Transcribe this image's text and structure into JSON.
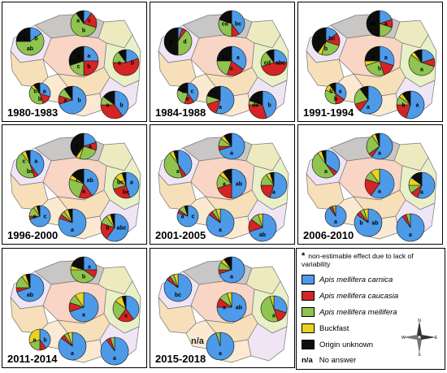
{
  "colors": {
    "carnica": "#4d9be8",
    "caucasia": "#d42424",
    "mellifera": "#8fc450",
    "buckfast": "#e6d422",
    "unknown": "#0d0d0d",
    "province_fills": [
      "#f8d5c4",
      "#f7e0b9",
      "#fbe9d2",
      "#e9f0c8",
      "#f0e5f5",
      "#c9c6c6",
      "#eeeac0"
    ]
  },
  "panels": [
    {
      "label": "1980-1983",
      "na_text": "",
      "pies": [
        {
          "region": "north",
          "values": [
            10,
            20,
            60,
            0,
            10
          ],
          "letters": [
            "c",
            "b",
            "a"
          ]
        },
        {
          "region": "west",
          "values": [
            15,
            0,
            60,
            0,
            25
          ],
          "letters": [
            "b",
            "ab",
            "a"
          ]
        },
        {
          "region": "center",
          "values": [
            25,
            25,
            20,
            0,
            30
          ],
          "letters": [
            "a",
            "b",
            "c",
            "a"
          ]
        },
        {
          "region": "east",
          "values": [
            20,
            55,
            15,
            0,
            10
          ],
          "letters": [
            "b",
            "a"
          ]
        },
        {
          "region": "southwest",
          "values": [
            30,
            15,
            40,
            5,
            10
          ],
          "letters": [
            "a",
            "b",
            "c"
          ]
        },
        {
          "region": "south",
          "values": [
            70,
            10,
            10,
            0,
            10
          ],
          "letters": [
            "b",
            "a"
          ]
        },
        {
          "region": "southeast",
          "values": [
            40,
            35,
            10,
            0,
            15
          ],
          "letters": [
            "b",
            "a"
          ]
        }
      ]
    },
    {
      "label": "1984-1988",
      "na_text": "",
      "pies": [
        {
          "region": "north",
          "values": [
            40,
            10,
            30,
            0,
            20
          ],
          "letters": [
            "bc",
            "cd"
          ]
        },
        {
          "region": "west",
          "values": [
            5,
            5,
            40,
            0,
            50
          ],
          "letters": [
            "d",
            "a"
          ]
        },
        {
          "region": "center",
          "values": [
            35,
            20,
            20,
            0,
            25
          ],
          "letters": [
            "a",
            "c",
            "bc"
          ]
        },
        {
          "region": "east",
          "values": [
            25,
            45,
            20,
            0,
            10
          ],
          "letters": [
            "abc",
            "cd"
          ]
        },
        {
          "region": "southwest",
          "values": [
            40,
            15,
            25,
            0,
            20
          ],
          "letters": [
            "c",
            "e",
            "d"
          ]
        },
        {
          "region": "south",
          "values": [
            55,
            15,
            10,
            0,
            20
          ],
          "letters": [
            "a"
          ]
        },
        {
          "region": "southeast",
          "values": [
            45,
            30,
            5,
            0,
            20
          ],
          "letters": [
            "b",
            "de"
          ]
        }
      ]
    },
    {
      "label": "1991-1994",
      "na_text": "",
      "pies": [
        {
          "region": "north",
          "values": [
            20,
            10,
            20,
            0,
            50
          ],
          "letters": [
            "a",
            "ab"
          ]
        },
        {
          "region": "west",
          "values": [
            15,
            15,
            25,
            5,
            40
          ],
          "letters": [
            "bc",
            "b",
            "b"
          ]
        },
        {
          "region": "center",
          "values": [
            30,
            15,
            25,
            5,
            25
          ],
          "letters": [
            "a",
            "b",
            "a"
          ]
        },
        {
          "region": "east",
          "values": [
            20,
            10,
            55,
            5,
            10
          ],
          "letters": [
            "a"
          ]
        },
        {
          "region": "southwest",
          "values": [
            35,
            15,
            30,
            10,
            10
          ],
          "letters": [
            "a",
            "b",
            "b"
          ]
        },
        {
          "region": "south",
          "values": [
            60,
            10,
            20,
            0,
            10
          ],
          "letters": [
            "a"
          ]
        },
        {
          "region": "southeast",
          "values": [
            55,
            20,
            10,
            5,
            10
          ],
          "letters": [
            "a",
            "b"
          ]
        }
      ]
    },
    {
      "label": "1996-2000",
      "na_text": "",
      "pies": [
        {
          "region": "north",
          "values": [
            20,
            10,
            25,
            5,
            40
          ],
          "letters": [
            "a",
            "c"
          ]
        },
        {
          "region": "west",
          "values": [
            40,
            5,
            45,
            5,
            5
          ],
          "letters": [
            "a",
            "bc",
            "c"
          ]
        },
        {
          "region": "center",
          "values": [
            40,
            15,
            25,
            5,
            15
          ],
          "letters": [
            "ab",
            "a",
            "c"
          ]
        },
        {
          "region": "east",
          "values": [
            45,
            25,
            15,
            10,
            5
          ],
          "letters": [
            "a",
            "bc",
            "bc"
          ]
        },
        {
          "region": "southwest",
          "values": [
            70,
            5,
            15,
            5,
            5
          ],
          "letters": [
            "c",
            "a"
          ]
        },
        {
          "region": "south",
          "values": [
            80,
            5,
            5,
            5,
            5
          ],
          "letters": [
            "a"
          ]
        },
        {
          "region": "southeast",
          "values": [
            60,
            20,
            10,
            5,
            5
          ],
          "letters": [
            "abc",
            "b"
          ]
        }
      ]
    },
    {
      "label": "2001-2005",
      "na_text": "",
      "pies": [
        {
          "region": "north",
          "values": [
            70,
            5,
            10,
            5,
            10
          ],
          "letters": [
            "a"
          ]
        },
        {
          "region": "west",
          "values": [
            40,
            5,
            45,
            5,
            5
          ],
          "letters": [
            "a"
          ]
        },
        {
          "region": "center",
          "values": [
            50,
            20,
            15,
            5,
            10
          ],
          "letters": [
            "ab",
            "a"
          ]
        },
        {
          "region": "east",
          "values": [
            55,
            20,
            15,
            5,
            5
          ],
          "letters": [
            "a"
          ]
        },
        {
          "region": "southwest",
          "values": [
            80,
            5,
            10,
            0,
            5
          ],
          "letters": [
            "c",
            "a"
          ]
        },
        {
          "region": "south",
          "values": [
            85,
            5,
            5,
            5,
            0
          ],
          "letters": [
            "a"
          ]
        },
        {
          "region": "southeast",
          "values": [
            70,
            15,
            10,
            5,
            0
          ],
          "letters": [
            "ab"
          ]
        }
      ]
    },
    {
      "label": "2006-2010",
      "na_text": "",
      "pies": [
        {
          "region": "north",
          "values": [
            60,
            5,
            25,
            5,
            5
          ],
          "letters": [
            "a"
          ]
        },
        {
          "region": "west",
          "values": [
            35,
            5,
            50,
            5,
            5
          ],
          "letters": [
            "a"
          ]
        },
        {
          "region": "center",
          "values": [
            60,
            20,
            10,
            10,
            0
          ],
          "letters": [
            "a"
          ]
        },
        {
          "region": "east",
          "values": [
            55,
            10,
            10,
            10,
            15
          ],
          "letters": [
            "a"
          ]
        },
        {
          "region": "southwest",
          "values": [
            90,
            5,
            5,
            0,
            0
          ],
          "letters": [
            "a"
          ]
        },
        {
          "region": "south",
          "values": [
            85,
            5,
            5,
            5,
            0
          ],
          "letters": [
            "ab",
            "b"
          ]
        },
        {
          "region": "southeast",
          "values": [
            90,
            5,
            5,
            0,
            0
          ],
          "letters": [
            "a"
          ]
        }
      ]
    },
    {
      "label": "2011-2014",
      "na_text": "",
      "pies": [
        {
          "region": "north",
          "values": [
            25,
            10,
            40,
            5,
            20
          ],
          "letters": [
            "a",
            "b",
            "c"
          ]
        },
        {
          "region": "west",
          "values": [
            70,
            5,
            15,
            5,
            5
          ],
          "letters": [
            "ab"
          ]
        },
        {
          "region": "center",
          "values": [
            70,
            10,
            10,
            10,
            0
          ],
          "letters": [
            "a"
          ]
        },
        {
          "region": "east",
          "values": [
            40,
            20,
            25,
            10,
            5
          ],
          "letters": [
            "a"
          ]
        },
        {
          "region": "southwest",
          "values": [
            40,
            10,
            20,
            30,
            0
          ],
          "letters": [
            "b",
            "a"
          ]
        },
        {
          "region": "south",
          "values": [
            85,
            5,
            5,
            5,
            0
          ],
          "letters": [
            "a"
          ]
        },
        {
          "region": "southeast",
          "values": [
            90,
            5,
            5,
            0,
            0
          ],
          "letters": [
            "a"
          ]
        }
      ]
    },
    {
      "label": "2015-2018",
      "na_text": "n/a",
      "pies": [
        {
          "region": "north",
          "values": [
            70,
            5,
            10,
            5,
            10
          ],
          "letters": [
            "a"
          ]
        },
        {
          "region": "west",
          "values": [
            85,
            5,
            5,
            5,
            0
          ],
          "letters": [
            "bc"
          ]
        },
        {
          "region": "center",
          "values": [
            75,
            10,
            10,
            5,
            0
          ],
          "letters": [
            "ab",
            "a"
          ]
        },
        {
          "region": "east",
          "values": [
            30,
            15,
            50,
            5,
            0
          ],
          "letters": [
            "a"
          ]
        },
        {
          "region": "southwest",
          "values": [
            0,
            0,
            0,
            0,
            0
          ],
          "letters": []
        },
        {
          "region": "south",
          "values": [
            95,
            0,
            5,
            0,
            0
          ],
          "letters": [
            "a"
          ]
        },
        {
          "region": "southeast",
          "values": [
            0,
            0,
            0,
            0,
            0
          ],
          "letters": []
        }
      ]
    }
  ],
  "legend": {
    "note_symbol": "*",
    "note_text": "non-estimable effect due to lack of variability",
    "items": [
      {
        "key": "carnica",
        "label": "Apis mellifera carnica",
        "italic": true
      },
      {
        "key": "caucasia",
        "label": "Apis mellifera caucasia",
        "italic": true
      },
      {
        "key": "mellifera",
        "label": "Apis mellifera mellifera",
        "italic": true
      },
      {
        "key": "buckfast",
        "label": "Buckfast",
        "italic": false
      },
      {
        "key": "unknown",
        "label": "Origin unknown",
        "italic": false
      }
    ],
    "na_abbrev": "n/a",
    "na_label": "No answer",
    "compass": {
      "n": "N",
      "s": "S",
      "e": "E",
      "w": "W"
    }
  }
}
